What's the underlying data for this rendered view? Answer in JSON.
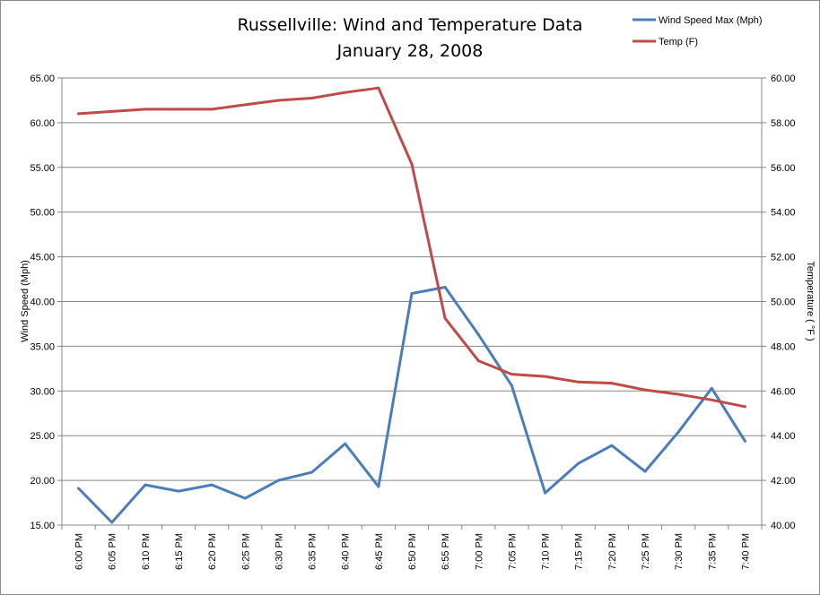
{
  "chart_data": {
    "type": "line",
    "title": "Russellville: Wind and Temperature Data",
    "subtitle": "January 28, 2008",
    "ylabel": "Wind Speed (Mph)",
    "y2label": "Temperature ( °F )",
    "xlabel": "",
    "ylim": [
      15,
      65
    ],
    "y2lim": [
      40,
      60
    ],
    "yticks": [
      "15.00",
      "20.00",
      "25.00",
      "30.00",
      "35.00",
      "40.00",
      "45.00",
      "50.00",
      "55.00",
      "60.00",
      "65.00"
    ],
    "y2ticks": [
      "40.00",
      "42.00",
      "44.00",
      "46.00",
      "48.00",
      "50.00",
      "52.00",
      "54.00",
      "56.00",
      "58.00",
      "60.00"
    ],
    "grid": true,
    "legend_position": "top-right",
    "categories": [
      "6:00 PM",
      "6:05 PM",
      "6:10 PM",
      "6:15 PM",
      "6:20 PM",
      "6:25 PM",
      "6:30 PM",
      "6:35 PM",
      "6:40 PM",
      "6:45 PM",
      "6:50 PM",
      "6:55 PM",
      "7:00 PM",
      "7:05 PM",
      "7:10 PM",
      "7:15 PM",
      "7:20 PM",
      "7:25 PM",
      "7:30 PM",
      "7:35 PM",
      "7:40 PM"
    ],
    "series": [
      {
        "name": "Wind Speed Max (Mph)",
        "axis": "left",
        "color": "#4a7ebb",
        "values": [
          19.1,
          15.3,
          19.5,
          18.8,
          19.5,
          18.0,
          20.0,
          20.9,
          24.1,
          19.3,
          40.9,
          41.6,
          36.3,
          30.6,
          18.6,
          21.9,
          23.9,
          21.0,
          25.4,
          30.3,
          24.4
        ]
      },
      {
        "name": "Temp (F)",
        "axis": "right",
        "color": "#be4b48",
        "values": [
          58.4,
          58.5,
          58.6,
          58.6,
          58.6,
          58.8,
          59.0,
          59.1,
          59.35,
          59.55,
          56.15,
          49.25,
          47.35,
          46.75,
          46.65,
          46.4,
          46.35,
          46.05,
          45.85,
          45.6,
          45.3
        ]
      }
    ]
  }
}
